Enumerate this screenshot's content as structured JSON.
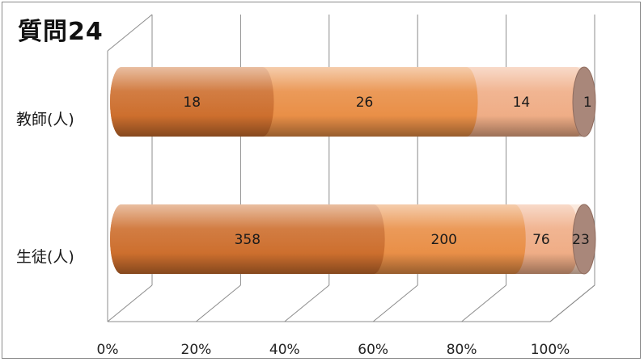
{
  "chart_data": {
    "type": "bar",
    "orientation": "horizontal",
    "stacked": "percent",
    "style": "3d-cylinder",
    "title": "質問24",
    "categories": [
      "教師(人)",
      "生徒(人)"
    ],
    "series": [
      {
        "values": [
          18,
          358
        ],
        "color": "#cd6f2e"
      },
      {
        "values": [
          26,
          200
        ],
        "color": "#e98f47"
      },
      {
        "values": [
          14,
          76
        ],
        "color": "#efad86"
      },
      {
        "values": [
          1,
          23
        ],
        "color": "#f7d2bb"
      }
    ],
    "x_ticks": [
      "0%",
      "20%",
      "40%",
      "60%",
      "80%",
      "100%"
    ],
    "xlim": [
      0,
      100
    ],
    "grid": true,
    "legend": "none"
  }
}
